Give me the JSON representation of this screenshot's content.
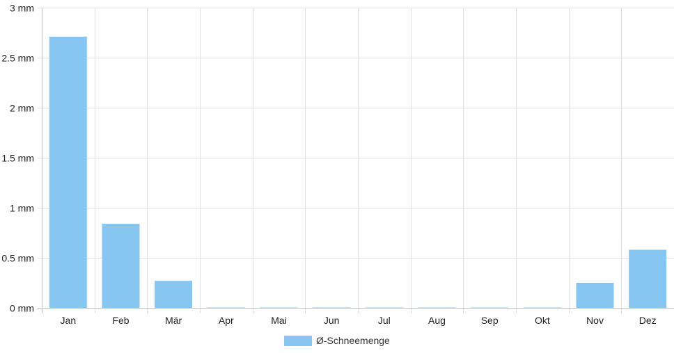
{
  "chart_data": {
    "type": "bar",
    "categories": [
      "Jan",
      "Feb",
      "Mär",
      "Apr",
      "Mai",
      "Jun",
      "Jul",
      "Aug",
      "Sep",
      "Okt",
      "Nov",
      "Dez"
    ],
    "series": [
      {
        "name": "Ø-Schneemenge",
        "values": [
          2.71,
          0.84,
          0.27,
          0.0,
          0,
          0,
          0,
          0,
          0,
          0,
          0.25,
          0.58
        ],
        "color": "#88c6f2"
      }
    ],
    "ylim": [
      0,
      3
    ],
    "yticks": [
      {
        "value": 0,
        "label": "0 mm"
      },
      {
        "value": 0.5,
        "label": "0.5 mm"
      },
      {
        "value": 1,
        "label": "1 mm"
      },
      {
        "value": 1.5,
        "label": "1.5 mm"
      },
      {
        "value": 2,
        "label": "2 mm"
      },
      {
        "value": 2.5,
        "label": "2.5 mm"
      },
      {
        "value": 3,
        "label": "3 mm"
      }
    ],
    "grid": true,
    "legend_position": "bottom-center",
    "grid_color": "#e0e0e0",
    "axis_color": "#bdbdbd"
  }
}
